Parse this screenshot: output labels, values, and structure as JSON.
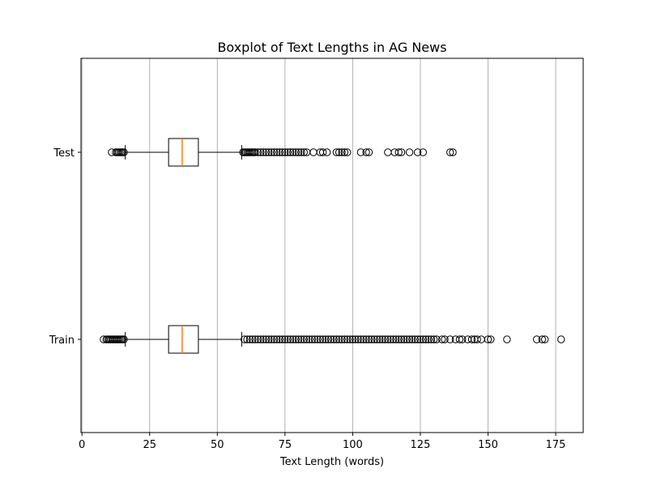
{
  "chart_data": {
    "type": "boxplot",
    "orientation": "horizontal",
    "title": "Boxplot of Text Lengths in AG News",
    "xlabel": "Text Length (words)",
    "ylabel": "",
    "xlim": [
      0,
      186
    ],
    "xticks": [
      0,
      25,
      50,
      75,
      100,
      125,
      150,
      175
    ],
    "grid": "x",
    "colors": {
      "box": "#000000",
      "median": "#ff7f0e",
      "grid": "#b0b0b0",
      "flier": "#000000"
    },
    "series": [
      {
        "label": "Test",
        "whisker_low": 16,
        "q1": 32,
        "median": 37,
        "q3": 43,
        "whisker_high": 59,
        "fliers": [
          11,
          12.5,
          13,
          13.5,
          14,
          14.5,
          15,
          15.5,
          59.5,
          60,
          60.5,
          61,
          61.5,
          62,
          62.5,
          63,
          63.5,
          64,
          65,
          66,
          67,
          68,
          69,
          70,
          71,
          72,
          73,
          74,
          75,
          76,
          77,
          78,
          79,
          80,
          81,
          82,
          83,
          85.5,
          88,
          89,
          90.5,
          94,
          95,
          96,
          97,
          98,
          103,
          105,
          106,
          113,
          115.5,
          117,
          118,
          121,
          124,
          126,
          136,
          137
        ]
      },
      {
        "label": "Train",
        "whisker_low": 16,
        "q1": 32,
        "median": 37,
        "q3": 43,
        "whisker_high": 59,
        "fliers": [
          8,
          9,
          9.5,
          10,
          10.5,
          11,
          11.5,
          12,
          12.5,
          13,
          13.5,
          14,
          14.5,
          15,
          15.5,
          60,
          61,
          62,
          63,
          64,
          65,
          66,
          67,
          68,
          69,
          70,
          71,
          72,
          73,
          74,
          75,
          76,
          77,
          78,
          79,
          80,
          81,
          82,
          83,
          84,
          85,
          86,
          87,
          88,
          89,
          90,
          91,
          92,
          93,
          94,
          95,
          96,
          97,
          98,
          99,
          100,
          101,
          102,
          103,
          104,
          105,
          106,
          107,
          108,
          109,
          110,
          111,
          112,
          113,
          114,
          115,
          116,
          117,
          118,
          119,
          120,
          121,
          122,
          123,
          124,
          125,
          126,
          127,
          128,
          129,
          130,
          131,
          133,
          134,
          136,
          138,
          139.5,
          140.5,
          142.5,
          144,
          145,
          146,
          147.5,
          150,
          151,
          157,
          168,
          170,
          171,
          177
        ]
      }
    ]
  }
}
